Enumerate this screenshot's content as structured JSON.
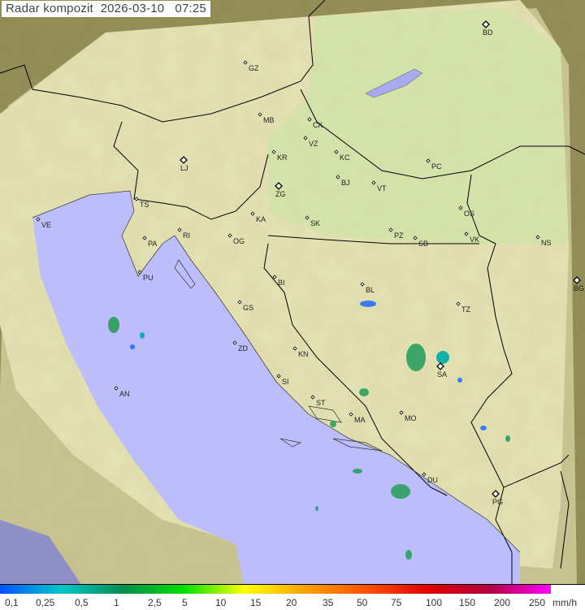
{
  "title": "Radar kompozit  2026-03-10   07:25",
  "colors": {
    "sea": "#bdbdfb",
    "land_in_range": "#e9e7b3",
    "land_out_of_range": "#8e8a52",
    "border": "#000000"
  },
  "legend": {
    "ticks": [
      "0,1",
      "0,25",
      "0,5",
      "1",
      "2,5",
      "5",
      "10",
      "15",
      "20",
      "35",
      "50",
      "75",
      "100",
      "150",
      "200",
      "250"
    ],
    "unit": "mm/h",
    "gradient": [
      "#0050ff",
      "#00c8c8",
      "#008c50",
      "#00e000",
      "#ffff00",
      "#ffa000",
      "#ff5000",
      "#e00000",
      "#b00040",
      "#ff00ff"
    ]
  },
  "cities": [
    "GZ",
    "BD",
    "MB",
    "CK",
    "VZ",
    "KR",
    "KC",
    "LJ",
    "PC",
    "BJ",
    "VT",
    "TS",
    "ZG",
    "VE",
    "RI",
    "KA",
    "SK",
    "OS",
    "PA",
    "OG",
    "PZ",
    "SB",
    "VK",
    "NS",
    "PU",
    "BI",
    "BL",
    "BG",
    "GS",
    "TZ",
    "ZD",
    "KN",
    "SA",
    "SI",
    "AN",
    "ST",
    "MA",
    "MO",
    "DU",
    "PG"
  ]
}
